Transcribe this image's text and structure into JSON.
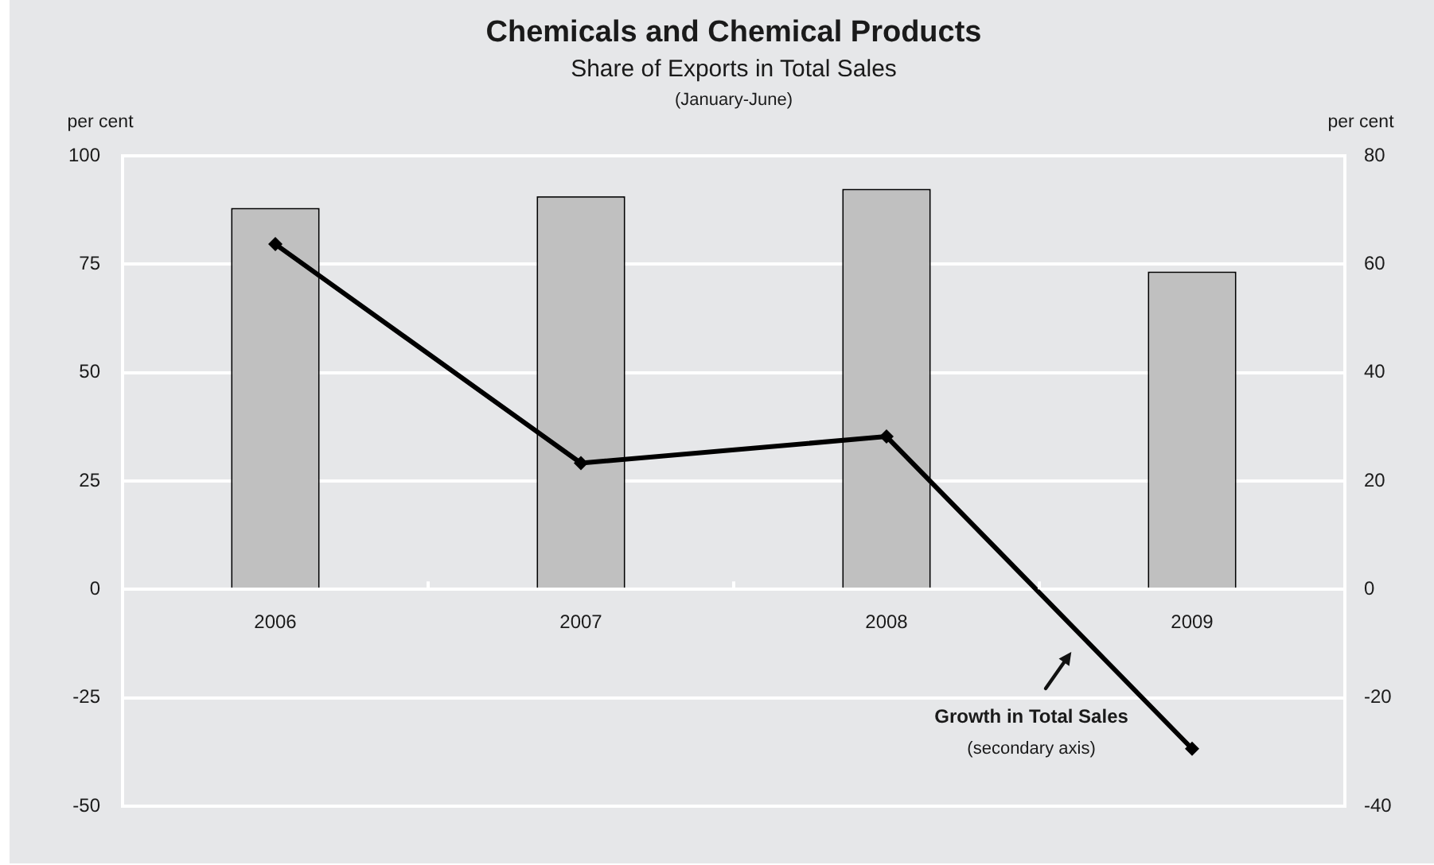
{
  "chart_data": {
    "type": "bar",
    "title": "Chemicals and Chemical Products",
    "subtitle": "Share of Exports in Total Sales",
    "annotations": [
      "(January-June)",
      "(secondary axis)"
    ],
    "ylabel": "per cent",
    "y2label": "per cent",
    "categories": [
      "2006",
      "2007",
      "2008",
      "2009"
    ],
    "series": [
      {
        "color": "#c0c0c0",
        "values": [
          88.0,
          90.7,
          92.4,
          73.3
        ]
      },
      {
        "type": "line",
        "name": "Growth in Total Sales",
        "color": "#000000",
        "axis": "y2",
        "values": [
          63.7,
          23.3,
          28.2,
          -29.4
        ]
      }
    ],
    "ylim": [
      -50,
      100
    ],
    "yticks": [
      -50,
      -25,
      0,
      25,
      50,
      75,
      100
    ],
    "y2lim": [
      -40,
      80
    ],
    "y2ticks": [
      -40,
      -20,
      0,
      20,
      40,
      60,
      80
    ],
    "grid": "y",
    "legend": false,
    "marker": "diamond"
  }
}
